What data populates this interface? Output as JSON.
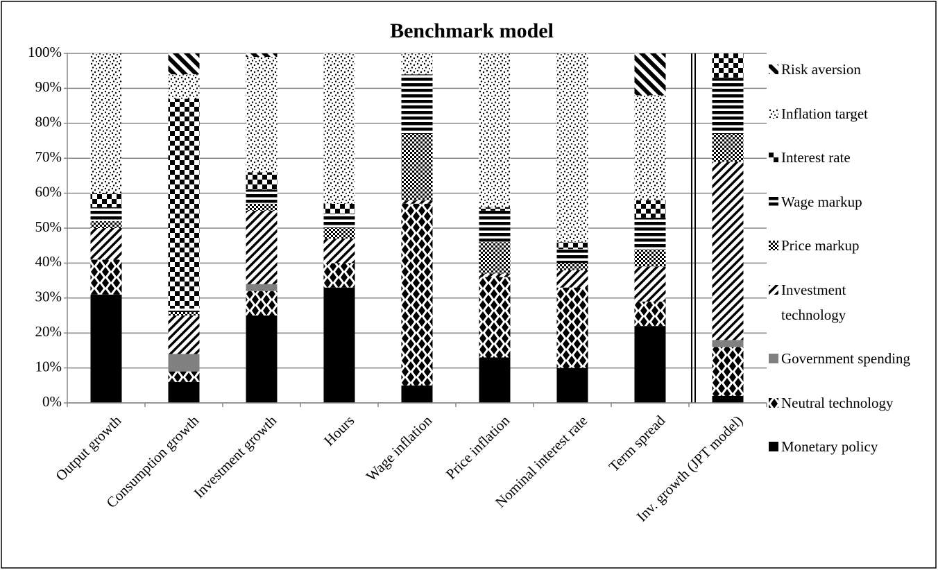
{
  "chart_data": {
    "type": "stacked-bar",
    "title": "Benchmark model",
    "categories": [
      "Output growth",
      "Consumption growth",
      "Investment growth",
      "Hours",
      "Wage inflation",
      "Price inflation",
      "Nominal interest rate",
      "Term spread",
      "Inv. growth (JPT model)"
    ],
    "series": [
      {
        "name": "Monetary policy",
        "color": "#000000",
        "values": [
          31,
          6,
          25,
          33,
          5,
          13,
          10,
          22,
          2
        ]
      },
      {
        "name": "Neutral technology",
        "color": "#000000",
        "values": [
          10,
          3,
          7,
          7,
          52,
          23,
          23,
          7,
          14
        ]
      },
      {
        "name": "Government spending",
        "color": "#808080",
        "values": [
          0,
          5,
          2,
          0,
          0,
          0,
          0,
          0,
          2
        ]
      },
      {
        "name": "Investment technology",
        "color": "#000000",
        "values": [
          9,
          11,
          21,
          7,
          1,
          1,
          5,
          10,
          51
        ]
      },
      {
        "name": "Price markup",
        "color": "#000000",
        "values": [
          2,
          1,
          2,
          3,
          19,
          9,
          2,
          5,
          8
        ]
      },
      {
        "name": "Wage markup",
        "color": "#000000",
        "values": [
          4,
          1,
          4,
          4,
          17,
          9,
          4,
          9,
          16
        ]
      },
      {
        "name": "Interest rate",
        "color": "#000000",
        "values": [
          4,
          60,
          5,
          3,
          0,
          1,
          2,
          5,
          7
        ]
      },
      {
        "name": "Inflation target",
        "color": "#000000",
        "values": [
          40,
          7,
          33,
          43,
          6,
          44,
          54,
          30,
          0
        ]
      },
      {
        "name": "Risk aversion",
        "color": "#000000",
        "values": [
          0,
          6,
          1,
          0,
          0,
          0,
          0,
          12,
          0
        ]
      }
    ],
    "ylim": [
      0,
      100
    ],
    "yticks": [
      {
        "value": 0,
        "label": "0%"
      },
      {
        "value": 10,
        "label": "10%"
      },
      {
        "value": 20,
        "label": "20%"
      },
      {
        "value": 30,
        "label": "30%"
      },
      {
        "value": 40,
        "label": "40%"
      },
      {
        "value": 50,
        "label": "50%"
      },
      {
        "value": 60,
        "label": "60%"
      },
      {
        "value": 70,
        "label": "70%"
      },
      {
        "value": 80,
        "label": "80%"
      },
      {
        "value": 90,
        "label": "90%"
      },
      {
        "value": 100,
        "label": "100%"
      }
    ],
    "grid": true,
    "legend": "right"
  }
}
